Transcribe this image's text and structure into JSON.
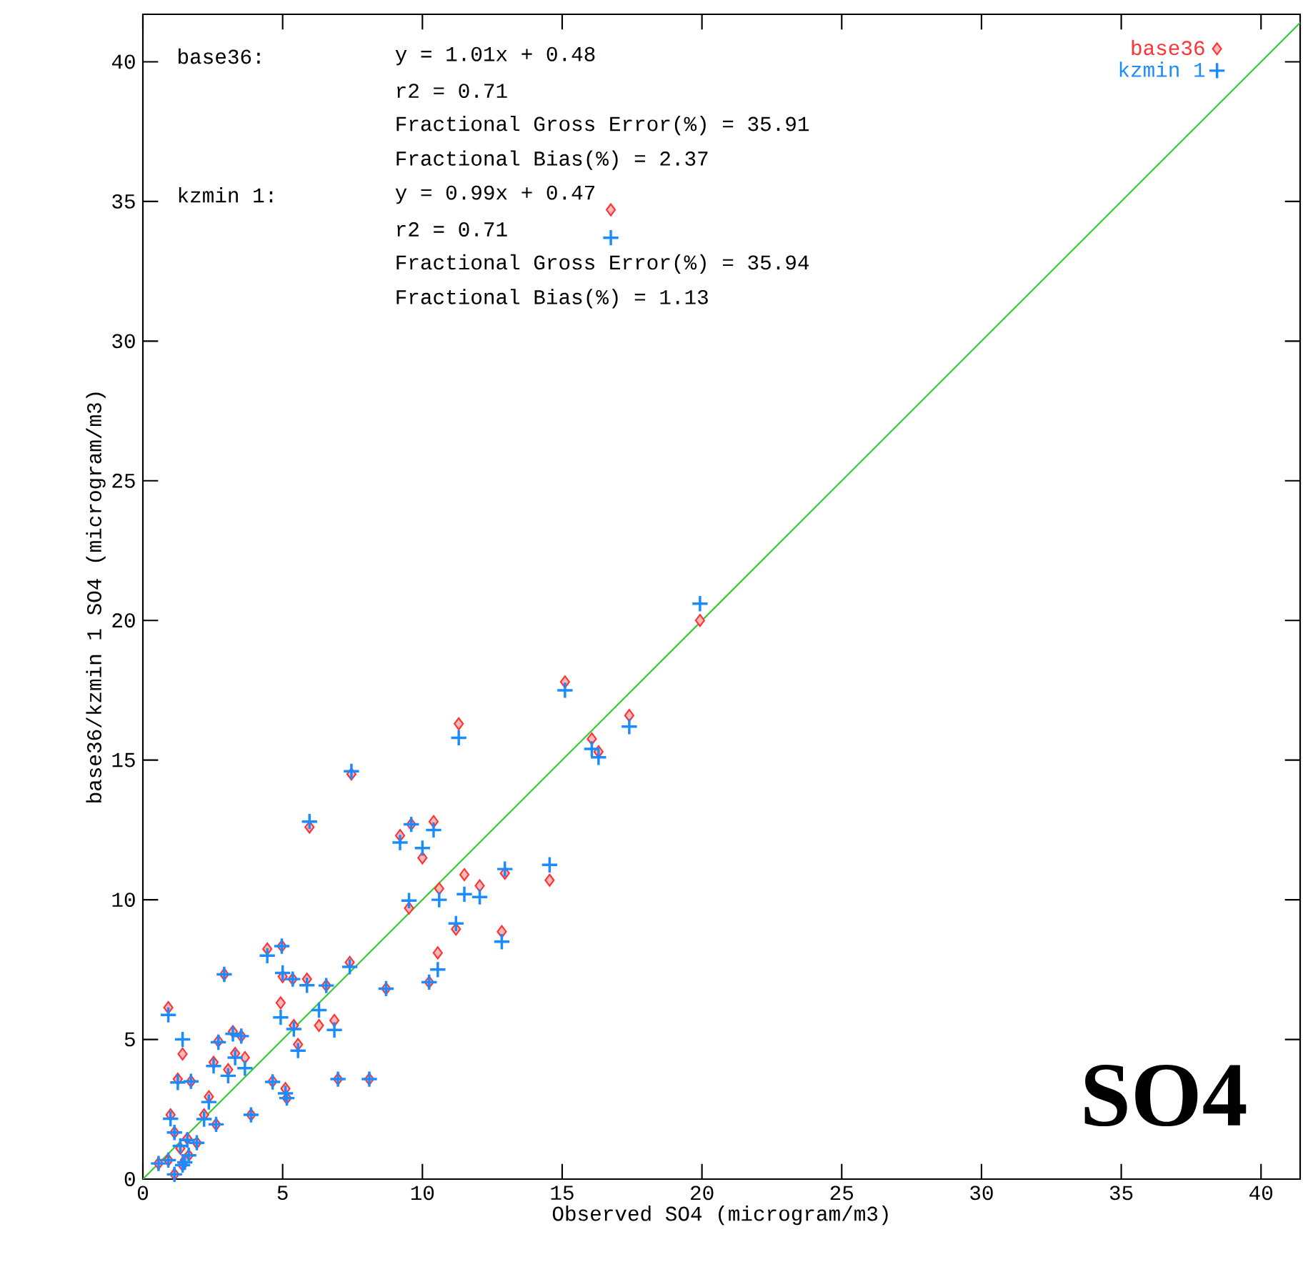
{
  "chart_data": {
    "type": "scatter",
    "title": "SO4",
    "xlabel": "Observed SO4  (microgram/m3)",
    "ylabel": "base36/kzmin 1 SO4  (microgram/m3)",
    "annotations": [
      "base36:",
      "y = 1.01x + 0.48",
      "r2 = 0.71",
      "Fractional Gross Error(%) = 35.91",
      "Fractional Bias(%) = 2.37",
      "kzmin 1:",
      "y = 0.99x + 0.47",
      "r2 = 0.71",
      "Fractional Gross Error(%) = 35.94",
      "Fractional Bias(%) = 1.13"
    ],
    "xlim": [
      0,
      41.4
    ],
    "ylim": [
      0,
      41.7
    ],
    "xticks": [
      0,
      5,
      10,
      15,
      20,
      25,
      30,
      35,
      40
    ],
    "yticks": [
      0,
      5,
      10,
      15,
      20,
      25,
      30,
      35,
      40
    ],
    "grid": false,
    "legend": "top right",
    "x": [
      16.74,
      19.93,
      15.1,
      17.4,
      16.06,
      16.3,
      11.3,
      7.46,
      5.96,
      9.2,
      9.6,
      10.4,
      10.0,
      9.52,
      10.6,
      11.5,
      12.05,
      12.95,
      14.55,
      11.2,
      12.84,
      10.55,
      10.24,
      8.7,
      7.4,
      6.56,
      4.45,
      4.97,
      2.91,
      5.0,
      5.36,
      5.87,
      0.91,
      4.93,
      6.3,
      6.85,
      5.4,
      5.55,
      1.42,
      2.7,
      3.22,
      3.52,
      3.3,
      3.65,
      2.53,
      3.05,
      1.25,
      1.72,
      4.64,
      5.1,
      5.15,
      6.98,
      8.1,
      2.36,
      0.99,
      2.19,
      2.62,
      3.87,
      1.13,
      1.59,
      1.93,
      1.34,
      1.64,
      0.56,
      0.91,
      1.5,
      1.13,
      1.42
    ],
    "series": [
      {
        "name": "base36",
        "marker": "diamond",
        "color": "#ff3333",
        "values": [
          34.7,
          20.0,
          17.8,
          16.6,
          15.76,
          15.3,
          16.3,
          14.5,
          12.6,
          12.3,
          12.7,
          12.8,
          11.5,
          9.7,
          10.4,
          10.9,
          10.5,
          10.95,
          10.7,
          8.95,
          8.86,
          8.1,
          7.05,
          6.82,
          7.76,
          6.93,
          8.24,
          8.34,
          7.33,
          7.25,
          7.16,
          7.16,
          6.14,
          6.31,
          5.5,
          5.68,
          5.5,
          4.82,
          4.48,
          4.94,
          5.28,
          5.12,
          4.5,
          4.35,
          4.18,
          3.92,
          3.58,
          3.5,
          3.5,
          3.24,
          2.9,
          3.58,
          3.58,
          2.95,
          2.3,
          2.3,
          1.96,
          2.3,
          1.67,
          1.45,
          1.3,
          1.1,
          0.85,
          0.56,
          0.68,
          0.68,
          0.17,
          0.5
        ]
      },
      {
        "name": "kzmin 1",
        "marker": "cross",
        "color": "#1a8cff",
        "values": [
          33.7,
          20.6,
          17.5,
          16.2,
          15.4,
          15.1,
          15.8,
          14.6,
          12.8,
          12.05,
          12.7,
          12.5,
          11.85,
          9.97,
          10.0,
          10.2,
          10.1,
          11.1,
          11.25,
          9.15,
          8.5,
          7.5,
          7.05,
          6.82,
          7.6,
          6.93,
          8.0,
          8.34,
          7.33,
          7.38,
          7.16,
          6.94,
          5.88,
          5.79,
          6.05,
          5.34,
          5.37,
          4.6,
          5.0,
          4.9,
          5.2,
          5.12,
          4.35,
          3.97,
          4.05,
          3.7,
          3.46,
          3.5,
          3.48,
          3.07,
          2.9,
          3.58,
          3.58,
          2.76,
          2.16,
          2.15,
          1.96,
          2.3,
          1.67,
          1.4,
          1.3,
          1.19,
          0.85,
          0.56,
          0.68,
          0.6,
          0.17,
          0.5
        ]
      },
      {
        "type": "line",
        "marker": "none",
        "color": "#33cc33",
        "x": [
          0,
          41.4
        ],
        "values": [
          0,
          41.4
        ]
      }
    ]
  }
}
